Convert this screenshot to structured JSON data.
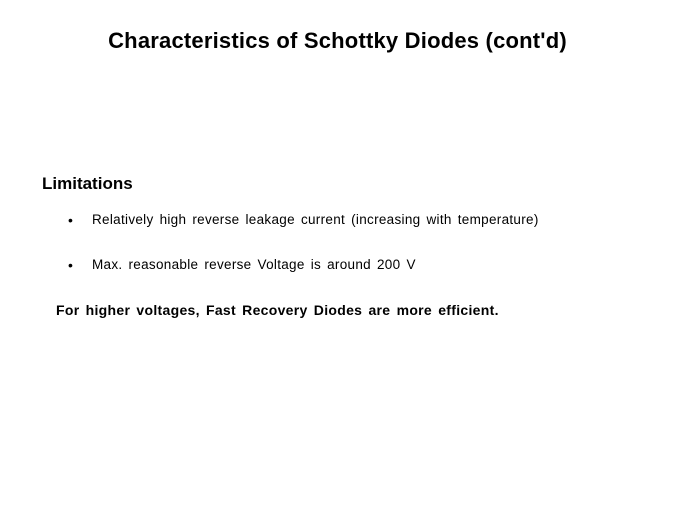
{
  "slide": {
    "title": "Characteristics of Schottky Diodes (cont'd)",
    "section_heading": "Limitations",
    "bullets": [
      "Relatively  high  reverse  leakage  current  (increasing  with  temperature)",
      "Max.  reasonable  reverse  Voltage  is around  200 V"
    ],
    "conclusion": "For higher  voltages,  Fast  Recovery  Diodes  are more  efficient."
  },
  "styling": {
    "background_color": "#ffffff",
    "text_color": "#000000",
    "title_fontsize": 22,
    "heading_fontsize": 17,
    "body_fontsize": 13.5,
    "conclusion_fontsize": 14,
    "font_family": "Arial, Helvetica, sans-serif"
  }
}
